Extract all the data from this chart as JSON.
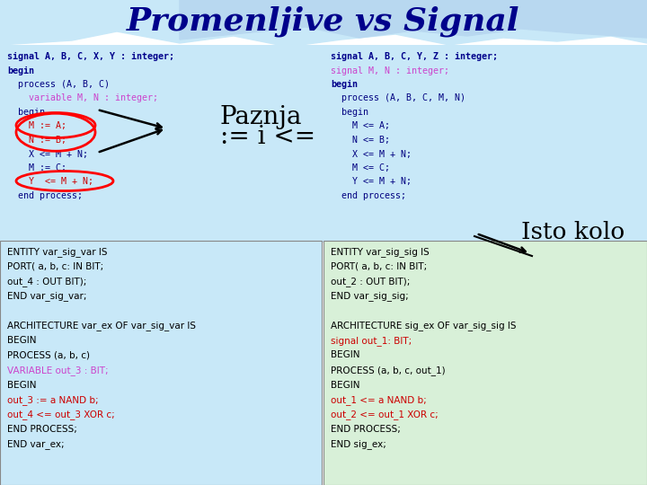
{
  "title": "Promenljive vs Signal",
  "title_color": "#00008B",
  "bg_color": "#FFFFFF",
  "top_panel_color": "#C8E8F8",
  "bottom_left_color": "#C8E8F8",
  "bottom_right_color": "#D8F0D8",
  "left_code_lines": [
    [
      "signal A, B, C, X, Y : integer;",
      "#00008B",
      true
    ],
    [
      "begin",
      "#00008B",
      true
    ],
    [
      "  process (A, B, C)",
      "#000080",
      false
    ],
    [
      "    variable M, N : integer;",
      "#CC44CC",
      false
    ],
    [
      "  begin",
      "#000080",
      false
    ],
    [
      "    M := A;",
      "#CC0000",
      false
    ],
    [
      "    N := B;",
      "#CC0000",
      false
    ],
    [
      "    X <= M + N;",
      "#000080",
      false
    ],
    [
      "    M := C;",
      "#000080",
      false
    ],
    [
      "    Y  <= M + N;",
      "#CC0000",
      false
    ],
    [
      "  end process;",
      "#000080",
      false
    ]
  ],
  "right_code_lines": [
    [
      "signal A, B, C, Y, Z : integer;",
      "#00008B",
      true
    ],
    [
      "signal M, N : integer;",
      "#CC44CC",
      false
    ],
    [
      "begin",
      "#00008B",
      true
    ],
    [
      "  process (A, B, C, M, N)",
      "#000080",
      false
    ],
    [
      "  begin",
      "#000080",
      false
    ],
    [
      "    M <= A;",
      "#000080",
      false
    ],
    [
      "    N <= B;",
      "#000080",
      false
    ],
    [
      "    X <= M + N;",
      "#000080",
      false
    ],
    [
      "    M <= C;",
      "#000080",
      false
    ],
    [
      "    Y <= M + N;",
      "#000080",
      false
    ],
    [
      "  end process;",
      "#000080",
      false
    ]
  ],
  "bl_lines": [
    [
      "ENTITY var_sig_var IS",
      "#000000",
      false
    ],
    [
      "PORT( a, b, c: IN BIT;",
      "#000000",
      false
    ],
    [
      "out_4 : OUT BIT);",
      "#000000",
      false
    ],
    [
      "END var_sig_var;",
      "#000000",
      false
    ],
    [
      "",
      "#000000",
      false
    ],
    [
      "ARCHITECTURE var_ex OF var_sig_var IS",
      "#000000",
      false
    ],
    [
      "BEGIN",
      "#000000",
      false
    ],
    [
      "PROCESS (a, b, c)",
      "#000000",
      false
    ],
    [
      "VARIABLE out_3 : BIT;",
      "#CC44CC",
      false
    ],
    [
      "BEGIN",
      "#000000",
      false
    ],
    [
      "out_3 := a NAND b;",
      "#CC0000",
      false
    ],
    [
      "out_4 <= out_3 XOR c;",
      "#CC0000",
      false
    ],
    [
      "END PROCESS;",
      "#000000",
      false
    ],
    [
      "END var_ex;",
      "#000000",
      false
    ]
  ],
  "br_lines": [
    [
      "ENTITY var_sig_sig IS",
      "#000000",
      false
    ],
    [
      "PORT( a, b, c: IN BIT;",
      "#000000",
      false
    ],
    [
      "out_2 : OUT BIT);",
      "#000000",
      false
    ],
    [
      "END var_sig_sig;",
      "#000000",
      false
    ],
    [
      "",
      "#000000",
      false
    ],
    [
      "ARCHITECTURE sig_ex OF var_sig_sig IS",
      "#000000",
      false
    ],
    [
      "signal out_1: BIT;",
      "#CC0000",
      false
    ],
    [
      "BEGIN",
      "#000000",
      false
    ],
    [
      "PROCESS (a, b, c, out_1)",
      "#000000",
      false
    ],
    [
      "BEGIN",
      "#000000",
      false
    ],
    [
      "out_1 <= a NAND b;",
      "#CC0000",
      false
    ],
    [
      "out_2 <= out_1 XOR c;",
      "#CC0000",
      false
    ],
    [
      "END PROCESS;",
      "#000000",
      false
    ],
    [
      "END sig_ex;",
      "#000000",
      false
    ]
  ]
}
